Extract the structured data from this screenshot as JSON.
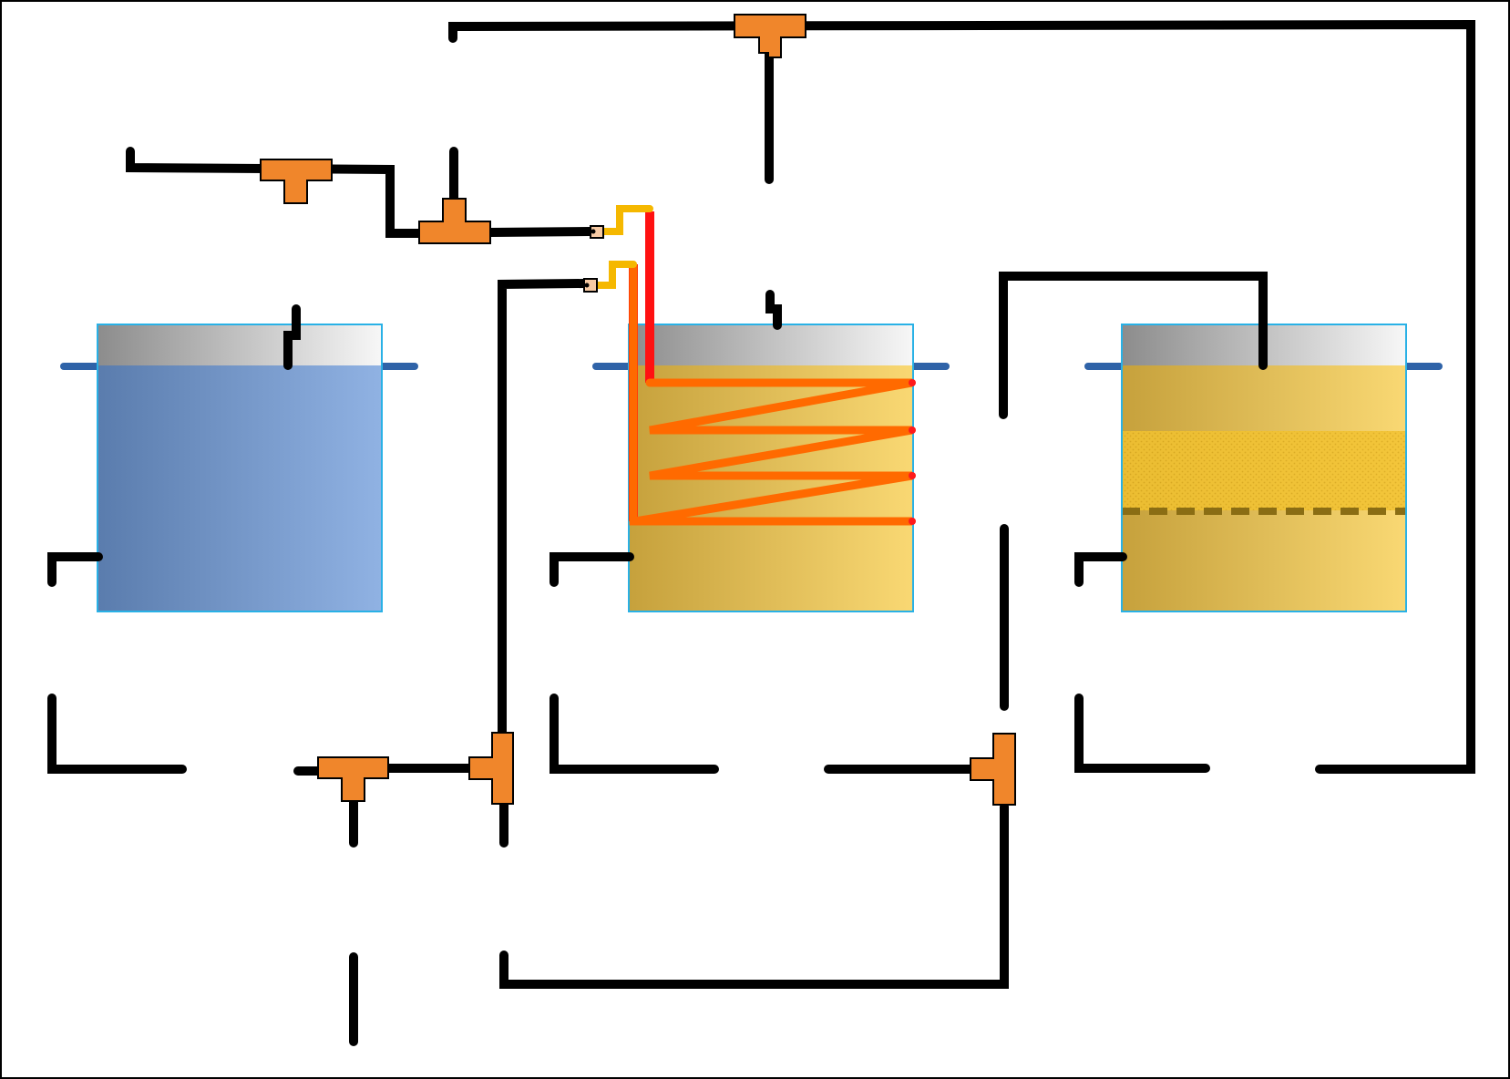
{
  "colors": {
    "background": "#ffffff",
    "pipe": "#000000",
    "tee_fitting": "#f0862b",
    "tank_rim": "#2f63a8",
    "tank_outline": "#29b1e6",
    "headspace_dark": "#8c8c8c",
    "headspace_light": "#f7f7f7",
    "water_dark": "#5a7cad",
    "water_light": "#90b2e3",
    "wort_dark": "#c6a13c",
    "wort_light": "#f9d873",
    "grain_bed": "#f2c230",
    "false_bottom": "#8a6d14",
    "heating_coil": "#ff6a00",
    "coil_terminal": "#ff1a1a",
    "hot_line": "#ff1111",
    "warm_line": "#f5b800",
    "connector": "#f6c9a3"
  },
  "vessels": [
    {
      "id": "hot-liquor-tank",
      "liquid": "water"
    },
    {
      "id": "boil-kettle",
      "liquid": "wort",
      "heating_coil": true,
      "coil_passes": 4
    },
    {
      "id": "mash-tun",
      "liquid": "wort",
      "grain_bed": true,
      "false_bottom": true
    }
  ],
  "fittings": {
    "tee_count": 6,
    "connector_count": 2
  },
  "icons": {
    "tee": "tee-fitting-icon",
    "connector": "electrical-connector-icon",
    "coil": "heating-coil-icon"
  }
}
